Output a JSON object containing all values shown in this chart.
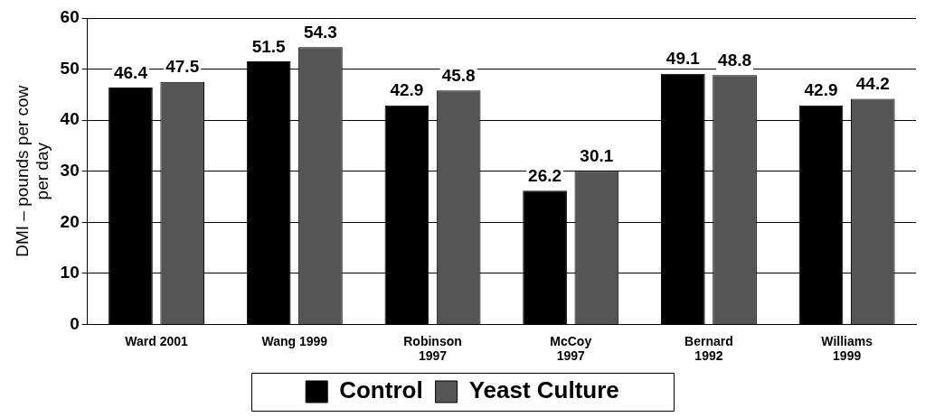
{
  "chart_data": {
    "type": "bar",
    "ylabel": "DMI – pounds per cow per day",
    "categories": [
      "Ward 2001",
      "Wang 1999",
      "Robinson\n1997",
      "McCoy\n1997",
      "Bernard\n1992",
      "Williams\n1999"
    ],
    "series": [
      {
        "name": "Control",
        "color": "#000000",
        "values": [
          46.4,
          51.5,
          42.9,
          26.2,
          49.1,
          42.9
        ]
      },
      {
        "name": "Yeast Culture",
        "color": "#555555",
        "values": [
          47.5,
          54.3,
          45.8,
          30.1,
          48.8,
          44.2
        ]
      }
    ],
    "ylim": [
      0,
      60
    ],
    "yticks": [
      0,
      10,
      20,
      30,
      40,
      50,
      60
    ],
    "grid": "y",
    "legend": "bottom",
    "data_labels": true
  }
}
